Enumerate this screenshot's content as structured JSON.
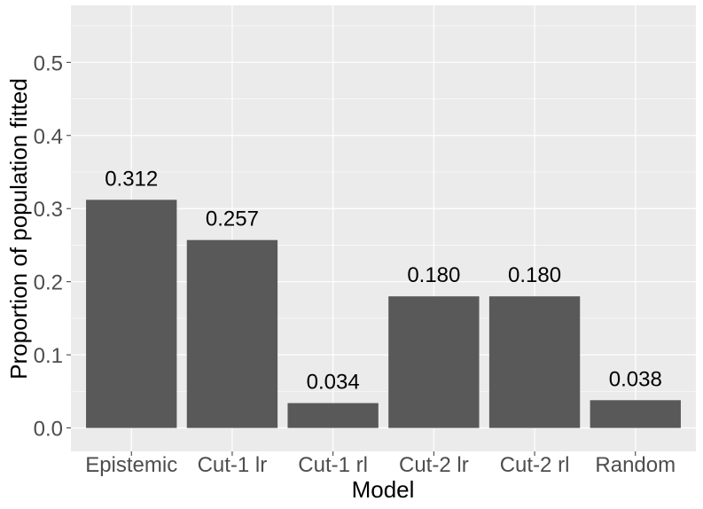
{
  "chart_data": {
    "type": "bar",
    "title": "",
    "xlabel": "Model",
    "ylabel": "Proportion of population fitted",
    "categories": [
      "Epistemic",
      "Cut-1 lr",
      "Cut-1 rl",
      "Cut-2 lr",
      "Cut-2 rl",
      "Random"
    ],
    "values": [
      0.312,
      0.257,
      0.034,
      0.18,
      0.18,
      0.038
    ],
    "data_labels": [
      "0.312",
      "0.257",
      "0.034",
      "0.180",
      "0.180",
      "0.038"
    ],
    "ylim": [
      -0.032,
      0.578
    ],
    "yticks": [
      0.0,
      0.1,
      0.2,
      0.3,
      0.4,
      0.5
    ],
    "ytick_labels": [
      "0.0",
      "0.1",
      "0.2",
      "0.3",
      "0.4",
      "0.5"
    ],
    "grid": true,
    "legend": "none",
    "colors": {
      "panel_background": "#ebebeb",
      "grid_major": "#ffffff",
      "bar_fill": "#595959",
      "tick_text": "#4d4d4d",
      "tick_mark": "#333333"
    }
  }
}
